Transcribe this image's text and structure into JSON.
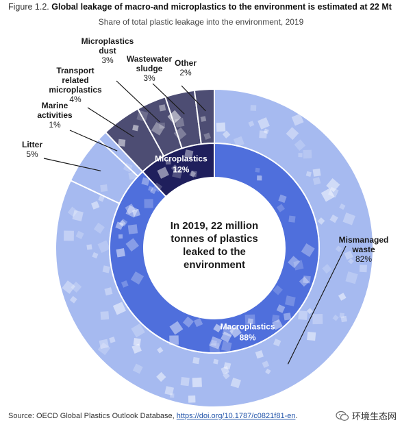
{
  "header": {
    "figure_number": "Figure 1.2.",
    "title": "Global leakage of macro-and microplastics to the environment is estimated at 22 Mt",
    "subtitle": "Share of total plastic leakage into the environment, 2019"
  },
  "chart_data": {
    "type": "pie",
    "variant": "sunburst-donut",
    "center_text": [
      "In 2019, 22 million",
      "tonnes of plastics",
      "leaked to the",
      "environment"
    ],
    "inner_ring": [
      {
        "name": "Macroplastics",
        "value": 88,
        "label": "88%",
        "color": "#4f6fdc"
      },
      {
        "name": "Microplastics",
        "value": 12,
        "label": "12%",
        "color": "#1f1f5c"
      }
    ],
    "outer_ring": [
      {
        "name": "Mismanaged waste",
        "value": 82,
        "label": "82%",
        "color": "#a6baf0",
        "parent": "Macroplastics"
      },
      {
        "name": "Litter",
        "value": 5,
        "label": "5%",
        "color": "#a6baf0",
        "parent": "Macroplastics"
      },
      {
        "name": "Marine activities",
        "value": 1,
        "label": "1%",
        "color": "#a6baf0",
        "parent": "Macroplastics"
      },
      {
        "name": "Transport related microplastics",
        "value": 4,
        "label": "4%",
        "color": "#4d4d73",
        "parent": "Microplastics"
      },
      {
        "name": "Microplastics dust",
        "value": 3,
        "label": "3%",
        "color": "#4d4d73",
        "parent": "Microplastics"
      },
      {
        "name": "Wastewater sludge",
        "value": 3,
        "label": "3%",
        "color": "#4d4d73",
        "parent": "Microplastics"
      },
      {
        "name": "Other",
        "value": 2,
        "label": "2%",
        "color": "#4d4d73",
        "parent": "Microplastics"
      }
    ],
    "outer_labels": [
      {
        "lines": [
          "Mismanaged",
          "waste"
        ]
      },
      {
        "lines": [
          "Litter"
        ]
      },
      {
        "lines": [
          "Marine",
          "activities"
        ]
      },
      {
        "lines": [
          "Transport",
          "related",
          "microplastics"
        ]
      },
      {
        "lines": [
          "Microplastics",
          "dust"
        ]
      },
      {
        "lines": [
          "Wastewater",
          "sludge"
        ]
      },
      {
        "lines": [
          "Other"
        ]
      }
    ]
  },
  "source": {
    "prefix": "Source: OECD Global Plastics Outlook Database, ",
    "link": "https://doi.org/10.1787/c0821f81-en",
    "suffix": "."
  },
  "watermark": {
    "text": "环境生态网",
    "icon": "wechat-icon"
  }
}
